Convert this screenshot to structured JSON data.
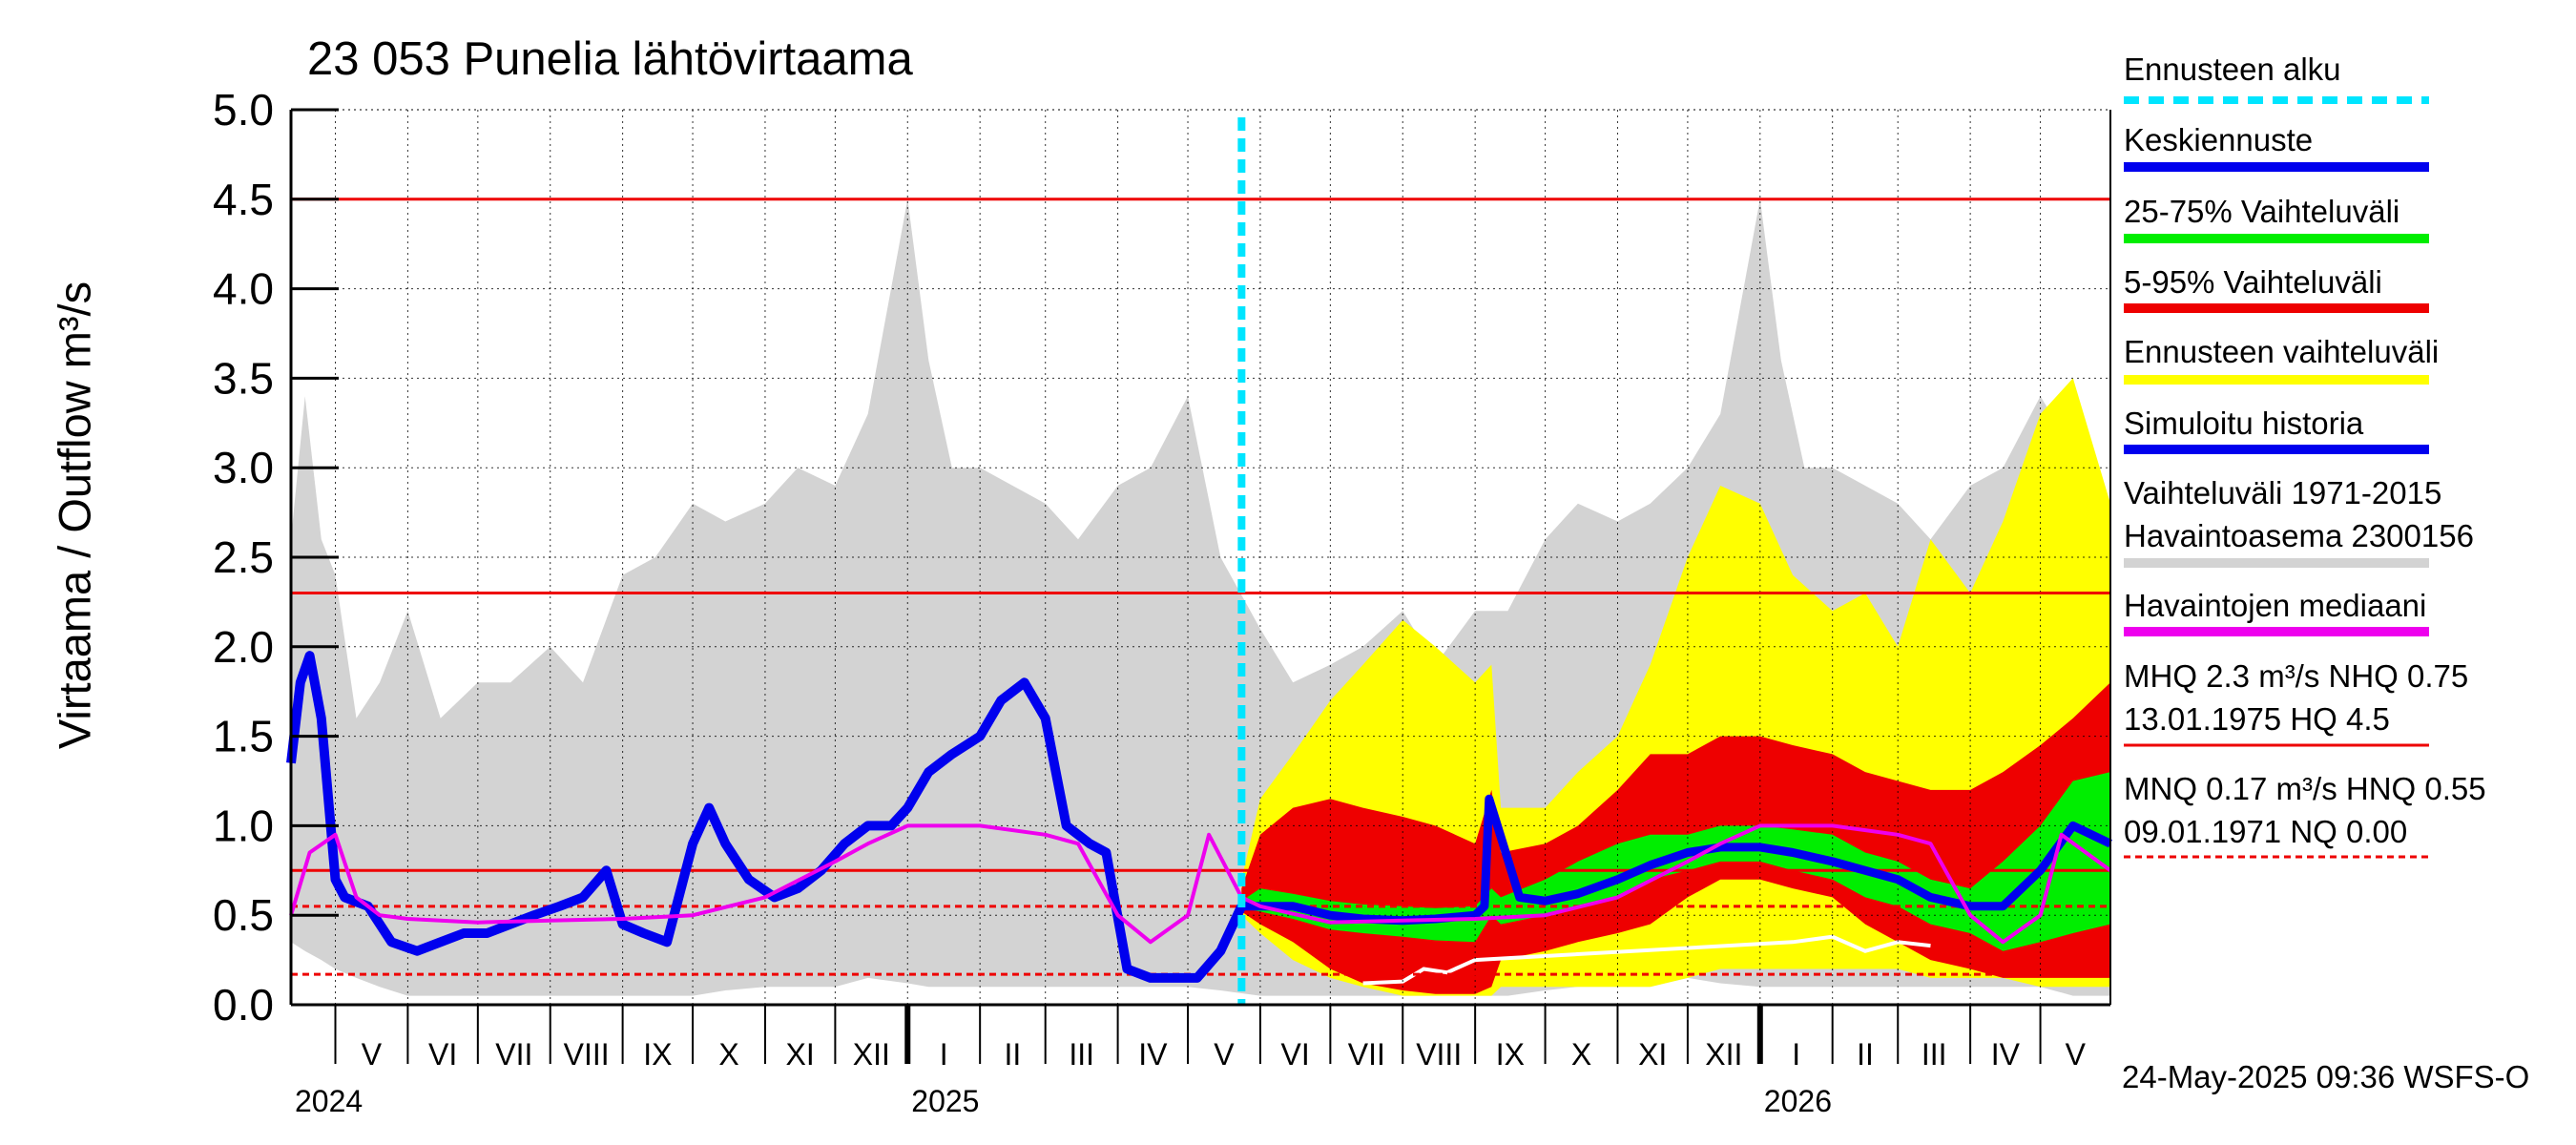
{
  "chart_data": {
    "type": "area",
    "title": "23 053 Punelia lähtövirtaama",
    "ylabel": "Virtaama / Outflow    m³/s",
    "ylim": [
      0.0,
      5.0
    ],
    "y_ticks": [
      "0.0",
      "0.5",
      "1.0",
      "1.5",
      "2.0",
      "2.5",
      "3.0",
      "3.5",
      "4.0",
      "4.5",
      "5.0"
    ],
    "x_range": [
      "2024-04-12",
      "2026-05-31"
    ],
    "grid": true,
    "months": [
      {
        "label": "V",
        "start": "2024-05-01"
      },
      {
        "label": "VI",
        "start": "2024-06-01"
      },
      {
        "label": "VII",
        "start": "2024-07-01"
      },
      {
        "label": "VIII",
        "start": "2024-08-01"
      },
      {
        "label": "IX",
        "start": "2024-09-01"
      },
      {
        "label": "X",
        "start": "2024-10-01"
      },
      {
        "label": "XI",
        "start": "2024-11-01"
      },
      {
        "label": "XII",
        "start": "2024-12-01"
      },
      {
        "label": "I",
        "start": "2025-01-01"
      },
      {
        "label": "II",
        "start": "2025-02-01"
      },
      {
        "label": "III",
        "start": "2025-03-01"
      },
      {
        "label": "IV",
        "start": "2025-04-01"
      },
      {
        "label": "V",
        "start": "2025-05-01"
      },
      {
        "label": "VI",
        "start": "2025-06-01"
      },
      {
        "label": "VII",
        "start": "2025-07-01"
      },
      {
        "label": "VIII",
        "start": "2025-08-01"
      },
      {
        "label": "IX",
        "start": "2025-09-01"
      },
      {
        "label": "X",
        "start": "2025-10-01"
      },
      {
        "label": "XI",
        "start": "2025-11-01"
      },
      {
        "label": "XII",
        "start": "2025-12-01"
      },
      {
        "label": "I",
        "start": "2026-01-01"
      },
      {
        "label": "II",
        "start": "2026-02-01"
      },
      {
        "label": "III",
        "start": "2026-03-01"
      },
      {
        "label": "IV",
        "start": "2026-04-01"
      },
      {
        "label": "V",
        "start": "2026-05-01"
      }
    ],
    "years": [
      {
        "label": "2024",
        "at": "2024-04-12"
      },
      {
        "label": "2025",
        "at": "2025-01-01"
      },
      {
        "label": "2026",
        "at": "2026-01-01"
      }
    ],
    "forecast_start": "2025-05-24",
    "reference_lines": [
      {
        "name": "HQ",
        "value": 4.5,
        "style": "solid"
      },
      {
        "name": "MHQ",
        "value": 2.3,
        "style": "solid"
      },
      {
        "name": "NHQ",
        "value": 0.75,
        "style": "solid"
      },
      {
        "name": "HNQ",
        "value": 0.55,
        "style": "dashed"
      },
      {
        "name": "MNQ",
        "value": 0.17,
        "style": "dashed"
      },
      {
        "name": "NQ",
        "value": 0.0,
        "style": "dashed"
      }
    ],
    "historical_range": {
      "name": "Vaihteluväli 1971-2015 Havaintoasema 2300156",
      "x": [
        "2024-04-12",
        "2024-04-18",
        "2024-04-25",
        "2024-05-01",
        "2024-05-10",
        "2024-05-20",
        "2024-06-01",
        "2024-06-15",
        "2024-07-01",
        "2024-07-15",
        "2024-08-01",
        "2024-08-15",
        "2024-09-01",
        "2024-09-15",
        "2024-10-01",
        "2024-10-15",
        "2024-11-01",
        "2024-11-15",
        "2024-12-01",
        "2024-12-15",
        "2025-01-01",
        "2025-01-10",
        "2025-01-20",
        "2025-02-01",
        "2025-02-15",
        "2025-03-01",
        "2025-03-15",
        "2025-04-01",
        "2025-04-15",
        "2025-05-01",
        "2025-05-15",
        "2025-06-01",
        "2025-06-15",
        "2025-07-01",
        "2025-07-15",
        "2025-08-01",
        "2025-08-15",
        "2025-09-01",
        "2025-09-15",
        "2025-10-01",
        "2025-10-15",
        "2025-11-01",
        "2025-11-15",
        "2025-12-01",
        "2025-12-15",
        "2026-01-01",
        "2026-01-10",
        "2026-01-20",
        "2026-02-01",
        "2026-02-15",
        "2026-03-01",
        "2026-03-15",
        "2026-04-01",
        "2026-04-15",
        "2026-05-01",
        "2026-05-15",
        "2026-05-31"
      ],
      "low": [
        0.35,
        0.3,
        0.25,
        0.2,
        0.15,
        0.1,
        0.05,
        0.05,
        0.05,
        0.05,
        0.05,
        0.05,
        0.05,
        0.05,
        0.05,
        0.08,
        0.1,
        0.1,
        0.1,
        0.15,
        0.12,
        0.1,
        0.1,
        0.1,
        0.1,
        0.1,
        0.1,
        0.1,
        0.1,
        0.1,
        0.08,
        0.05,
        0.05,
        0.05,
        0.05,
        0.05,
        0.05,
        0.05,
        0.05,
        0.08,
        0.1,
        0.1,
        0.1,
        0.15,
        0.12,
        0.1,
        0.1,
        0.1,
        0.1,
        0.1,
        0.1,
        0.1,
        0.1,
        0.1,
        0.1,
        0.05,
        0.05
      ],
      "high": [
        2.6,
        3.4,
        2.6,
        2.4,
        1.6,
        1.8,
        2.2,
        1.6,
        1.8,
        1.8,
        2.0,
        1.8,
        2.4,
        2.5,
        2.8,
        2.7,
        2.8,
        3.0,
        2.9,
        3.3,
        4.5,
        3.6,
        3.0,
        3.0,
        2.9,
        2.8,
        2.6,
        2.9,
        3.0,
        3.4,
        2.5,
        2.1,
        1.8,
        1.9,
        2.0,
        2.2,
        1.9,
        2.2,
        2.2,
        2.6,
        2.8,
        2.7,
        2.8,
        3.0,
        3.3,
        4.5,
        3.6,
        3.0,
        3.0,
        2.9,
        2.8,
        2.6,
        2.9,
        3.0,
        3.4,
        3.1,
        2.6
      ]
    },
    "forecast_bands": {
      "x": [
        "2025-05-24",
        "2025-06-01",
        "2025-06-15",
        "2025-07-01",
        "2025-07-15",
        "2025-08-01",
        "2025-08-15",
        "2025-09-01",
        "2025-09-08",
        "2025-09-12",
        "2025-10-01",
        "2025-10-15",
        "2025-11-01",
        "2025-11-15",
        "2025-12-01",
        "2025-12-15",
        "2026-01-01",
        "2026-01-15",
        "2026-02-01",
        "2026-02-15",
        "2026-03-01",
        "2026-03-15",
        "2026-04-01",
        "2026-04-15",
        "2026-05-01",
        "2026-05-15",
        "2026-05-31"
      ],
      "p0": [
        0.5,
        0.4,
        0.25,
        0.15,
        0.1,
        0.05,
        0.05,
        0.05,
        0.05,
        0.1,
        0.1,
        0.1,
        0.1,
        0.1,
        0.15,
        0.2,
        0.2,
        0.2,
        0.2,
        0.2,
        0.2,
        0.15,
        0.15,
        0.15,
        0.1,
        0.1,
        0.1
      ],
      "p5": [
        0.52,
        0.45,
        0.35,
        0.2,
        0.12,
        0.08,
        0.06,
        0.06,
        0.1,
        0.25,
        0.3,
        0.35,
        0.4,
        0.45,
        0.6,
        0.7,
        0.7,
        0.65,
        0.6,
        0.45,
        0.35,
        0.25,
        0.2,
        0.15,
        0.15,
        0.15,
        0.15
      ],
      "p25": [
        0.54,
        0.52,
        0.48,
        0.42,
        0.4,
        0.38,
        0.36,
        0.35,
        0.5,
        0.45,
        0.5,
        0.55,
        0.6,
        0.7,
        0.75,
        0.8,
        0.8,
        0.75,
        0.7,
        0.6,
        0.55,
        0.45,
        0.4,
        0.3,
        0.35,
        0.4,
        0.45
      ],
      "p75": [
        0.58,
        0.65,
        0.62,
        0.58,
        0.56,
        0.55,
        0.54,
        0.55,
        0.65,
        0.6,
        0.7,
        0.8,
        0.9,
        0.95,
        0.95,
        1.0,
        1.0,
        0.98,
        0.95,
        0.85,
        0.8,
        0.7,
        0.65,
        0.8,
        1.0,
        1.25,
        1.3
      ],
      "p95": [
        0.65,
        0.95,
        1.1,
        1.15,
        1.1,
        1.05,
        1.0,
        0.9,
        1.2,
        0.85,
        0.9,
        1.0,
        1.2,
        1.4,
        1.4,
        1.5,
        1.5,
        1.45,
        1.4,
        1.3,
        1.25,
        1.2,
        1.2,
        1.3,
        1.45,
        1.6,
        1.8
      ],
      "p100": [
        0.7,
        1.15,
        1.4,
        1.7,
        1.9,
        2.15,
        2.0,
        1.8,
        1.9,
        1.1,
        1.1,
        1.3,
        1.5,
        1.9,
        2.5,
        2.9,
        2.8,
        2.4,
        2.2,
        2.3,
        2.0,
        2.6,
        2.3,
        2.7,
        3.3,
        3.5,
        2.8
      ]
    },
    "series": [
      {
        "name": "Simuloitu historia",
        "color": "#0000ee",
        "x": [
          "2024-04-12",
          "2024-04-16",
          "2024-04-20",
          "2024-04-25",
          "2024-05-01",
          "2024-05-05",
          "2024-05-15",
          "2024-05-25",
          "2024-06-05",
          "2024-06-15",
          "2024-06-25",
          "2024-07-05",
          "2024-07-15",
          "2024-07-25",
          "2024-08-05",
          "2024-08-15",
          "2024-08-25",
          "2024-09-01",
          "2024-09-10",
          "2024-09-20",
          "2024-10-01",
          "2024-10-08",
          "2024-10-15",
          "2024-10-25",
          "2024-11-05",
          "2024-11-15",
          "2024-11-25",
          "2024-12-05",
          "2024-12-15",
          "2024-12-25",
          "2025-01-01",
          "2025-01-10",
          "2025-01-20",
          "2025-02-01",
          "2025-02-10",
          "2025-02-20",
          "2025-03-01",
          "2025-03-10",
          "2025-03-20",
          "2025-03-27",
          "2025-04-05",
          "2025-04-15",
          "2025-04-25",
          "2025-05-05",
          "2025-05-15",
          "2025-05-24"
        ],
        "y": [
          1.35,
          1.8,
          1.95,
          1.6,
          0.7,
          0.6,
          0.55,
          0.35,
          0.3,
          0.35,
          0.4,
          0.4,
          0.45,
          0.5,
          0.55,
          0.6,
          0.75,
          0.45,
          0.4,
          0.35,
          0.9,
          1.1,
          0.9,
          0.7,
          0.6,
          0.65,
          0.75,
          0.9,
          1.0,
          1.0,
          1.1,
          1.3,
          1.4,
          1.5,
          1.7,
          1.8,
          1.6,
          1.0,
          0.9,
          0.85,
          0.2,
          0.15,
          0.15,
          0.15,
          0.3,
          0.55
        ]
      },
      {
        "name": "Keskiennuste",
        "color": "#0000ee",
        "x": [
          "2025-05-24",
          "2025-06-15",
          "2025-07-01",
          "2025-07-15",
          "2025-08-01",
          "2025-08-15",
          "2025-09-01",
          "2025-09-05",
          "2025-09-07",
          "2025-09-20",
          "2025-10-01",
          "2025-10-15",
          "2025-11-01",
          "2025-11-15",
          "2025-12-01",
          "2025-12-15",
          "2026-01-01",
          "2026-01-15",
          "2026-02-01",
          "2026-02-15",
          "2026-03-01",
          "2026-03-15",
          "2026-04-01",
          "2026-04-15",
          "2026-05-01",
          "2026-05-15",
          "2026-05-31"
        ],
        "y": [
          0.55,
          0.55,
          0.5,
          0.48,
          0.47,
          0.48,
          0.5,
          0.55,
          1.15,
          0.6,
          0.58,
          0.62,
          0.7,
          0.78,
          0.85,
          0.88,
          0.88,
          0.85,
          0.8,
          0.75,
          0.7,
          0.6,
          0.55,
          0.55,
          0.75,
          1.0,
          0.9
        ]
      },
      {
        "name": "Havaintojen mediaani",
        "color": "#ee00ee",
        "x": [
          "2024-04-12",
          "2024-04-20",
          "2024-05-01",
          "2024-05-10",
          "2024-05-20",
          "2024-06-01",
          "2024-07-01",
          "2024-08-01",
          "2024-09-01",
          "2024-10-01",
          "2024-11-01",
          "2024-12-01",
          "2024-12-15",
          "2025-01-01",
          "2025-02-01",
          "2025-03-01",
          "2025-03-15",
          "2025-04-01",
          "2025-04-15",
          "2025-05-01",
          "2025-05-10",
          "2025-05-24",
          "2025-06-01",
          "2025-07-01",
          "2025-08-01",
          "2025-09-01",
          "2025-10-01",
          "2025-11-01",
          "2025-12-01",
          "2025-12-15",
          "2026-01-01",
          "2026-02-01",
          "2026-03-01",
          "2026-03-15",
          "2026-04-01",
          "2026-04-15",
          "2026-05-01",
          "2026-05-10",
          "2026-05-31"
        ],
        "y": [
          0.5,
          0.85,
          0.95,
          0.6,
          0.5,
          0.48,
          0.46,
          0.47,
          0.48,
          0.5,
          0.6,
          0.8,
          0.9,
          1.0,
          1.0,
          0.95,
          0.9,
          0.5,
          0.35,
          0.5,
          0.95,
          0.6,
          0.55,
          0.46,
          0.47,
          0.48,
          0.5,
          0.6,
          0.8,
          0.9,
          1.0,
          1.0,
          0.95,
          0.9,
          0.5,
          0.35,
          0.5,
          0.95,
          0.75
        ]
      }
    ],
    "white_low_trace": {
      "x": [
        "2025-07-15",
        "2025-08-01",
        "2025-08-10",
        "2025-08-20",
        "2025-09-01",
        "2026-01-15",
        "2026-02-01",
        "2026-02-15",
        "2026-03-01",
        "2026-03-15"
      ],
      "y": [
        0.12,
        0.13,
        0.2,
        0.18,
        0.25,
        0.35,
        0.38,
        0.3,
        0.35,
        0.33
      ]
    },
    "legend": [
      {
        "label": "Ennusteen alku",
        "color": "#00e5ff",
        "style": "dashed"
      },
      {
        "label": "Keskiennuste",
        "color": "#0000ee",
        "style": "solid"
      },
      {
        "label": "25-75% Vaihteluväli",
        "color": "#00ee00",
        "style": "solid"
      },
      {
        "label": "5-95% Vaihteluväli",
        "color": "#ee0000",
        "style": "solid"
      },
      {
        "label": "Ennusteen vaihteluväli",
        "color": "#ffff00",
        "style": "solid"
      },
      {
        "label": "Simuloitu historia",
        "color": "#0000ee",
        "style": "solid"
      },
      {
        "label": "Vaihteluväli 1971-2015",
        "label2": " Havaintoasema 2300156",
        "color": "#d3d3d3",
        "style": "solid"
      },
      {
        "label": "Havaintojen mediaani",
        "color": "#ee00ee",
        "style": "solid"
      },
      {
        "label": "MHQ  2.3 m³/s NHQ 0.75",
        "label2": "13.01.1975 HQ  4.5",
        "color": "#ee0000",
        "style": "thin"
      },
      {
        "label": "MNQ 0.17 m³/s HNQ 0.55",
        "label2": "09.01.1971 NQ 0.00",
        "color": "#ee0000",
        "style": "dashed-thin"
      }
    ],
    "footer": "24-May-2025 09:36 WSFS-O"
  }
}
